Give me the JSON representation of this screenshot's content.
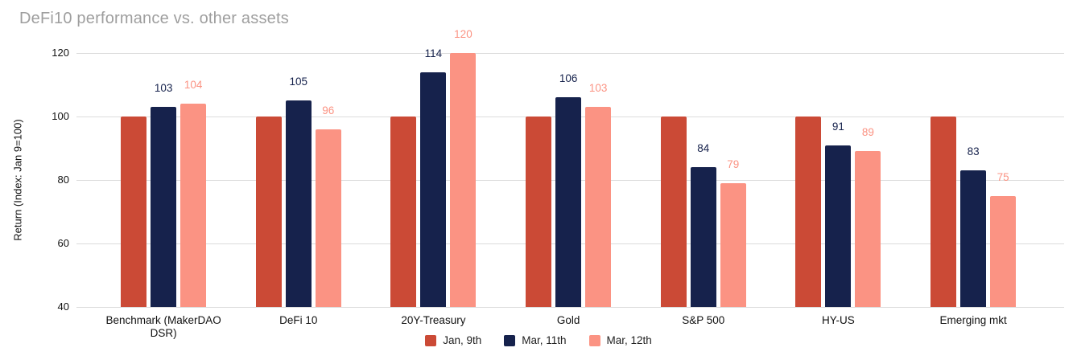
{
  "chart_data": {
    "type": "bar",
    "title": "DeFi10 performance vs. other assets",
    "ylabel": "Return (Index: Jan 9=100)",
    "xlabel": "",
    "ylim": [
      40,
      120
    ],
    "yticks": [
      40,
      60,
      80,
      100,
      120
    ],
    "grid": true,
    "legend_position": "bottom",
    "categories": [
      "Benchmark (MakerDAO DSR)",
      "DeFi 10",
      "20Y-Treasury",
      "Gold",
      "S&P 500",
      "HY-US",
      "Emerging mkt"
    ],
    "series": [
      {
        "name": "Jan, 9th",
        "color": "#cb4a36",
        "show_value_labels": false,
        "values": [
          100,
          100,
          100,
          100,
          100,
          100,
          100
        ]
      },
      {
        "name": "Mar, 11th",
        "color": "#16224c",
        "show_value_labels": true,
        "values": [
          103,
          105,
          114,
          106,
          84,
          91,
          83
        ]
      },
      {
        "name": "Mar, 12th",
        "color": "#fb9383",
        "show_value_labels": true,
        "values": [
          104,
          96,
          120,
          103,
          79,
          89,
          75
        ]
      }
    ],
    "style": {
      "title_color": "#9e9e9e",
      "axis_text_color": "#111111",
      "gridline_color": "#dcdcdc",
      "background_color": "#ffffff"
    }
  }
}
